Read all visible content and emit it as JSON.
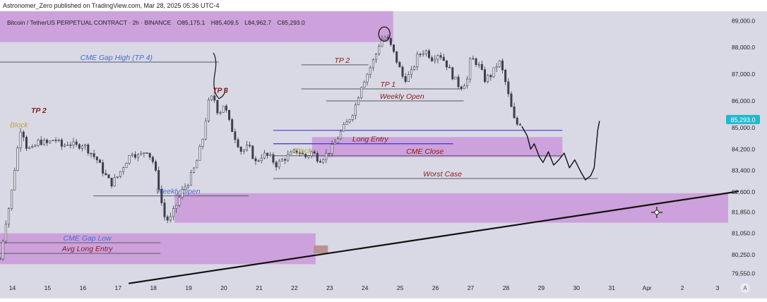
{
  "header": {
    "published": "Astronomer_Zero published on TradingView.com, Mar 28, 2025 05:36 UTC-4",
    "symbol": "Bitcoin / TetherUS PERPETUAL CONTRACT · 2h · BINANCE",
    "open": "O85,175.1",
    "high": "H85,409.5",
    "low": "L84,962.7",
    "close": "C85,293.0"
  },
  "chart_data": {
    "type": "candlestick",
    "title": "Bitcoin / TetherUS PERPETUAL CONTRACT · 2h · BINANCE",
    "y_axis": {
      "ylim": [
        79250,
        89350
      ],
      "ticks": [
        "89,000.0",
        "88,000.0",
        "87,000.0",
        "86,000.0",
        "85,000.0",
        "84,200.0",
        "83,400.0",
        "82,600.0",
        "81,850.0",
        "81,050.0",
        "80,250.0",
        "79,550.0"
      ],
      "tick_values": [
        89000,
        88000,
        87000,
        86000,
        85000,
        84200,
        83400,
        82600,
        81850,
        81050,
        80250,
        79550
      ],
      "last_price": "85,293.0",
      "last_value": 85293
    },
    "x_axis": {
      "labels": [
        "14",
        "15",
        "16",
        "17",
        "18",
        "19",
        "20",
        "21",
        "22",
        "23",
        "24",
        "25",
        "26",
        "27",
        "28",
        "29",
        "30",
        "31",
        "Apr",
        "2",
        "3"
      ],
      "day_start": 13.65,
      "day_end": 34.2
    },
    "price_path": [
      [
        13.65,
        80100
      ],
      [
        13.8,
        81400
      ],
      [
        13.95,
        82300
      ],
      [
        14.1,
        83800
      ],
      [
        14.25,
        85100
      ],
      [
        14.4,
        84300
      ],
      [
        14.55,
        84150
      ],
      [
        14.75,
        84500
      ],
      [
        15.0,
        84400
      ],
      [
        15.2,
        84600
      ],
      [
        15.4,
        84300
      ],
      [
        15.6,
        84450
      ],
      [
        15.8,
        84300
      ],
      [
        16.0,
        84400
      ],
      [
        16.2,
        84100
      ],
      [
        16.4,
        83800
      ],
      [
        16.6,
        83300
      ],
      [
        16.8,
        82900
      ],
      [
        17.0,
        83200
      ],
      [
        17.2,
        83700
      ],
      [
        17.4,
        84100
      ],
      [
        17.6,
        83900
      ],
      [
        17.8,
        84200
      ],
      [
        18.0,
        83700
      ],
      [
        18.15,
        82800
      ],
      [
        18.3,
        81700
      ],
      [
        18.45,
        81500
      ],
      [
        18.6,
        81950
      ],
      [
        18.8,
        82600
      ],
      [
        19.0,
        83000
      ],
      [
        19.2,
        83600
      ],
      [
        19.4,
        84600
      ],
      [
        19.55,
        85900
      ],
      [
        19.7,
        86200
      ],
      [
        19.85,
        85500
      ],
      [
        20.0,
        85900
      ],
      [
        20.15,
        85200
      ],
      [
        20.3,
        84700
      ],
      [
        20.5,
        84100
      ],
      [
        20.7,
        84300
      ],
      [
        20.9,
        83700
      ],
      [
        21.1,
        84000
      ],
      [
        21.3,
        83900
      ],
      [
        21.5,
        83600
      ],
      [
        21.7,
        83850
      ],
      [
        21.9,
        84000
      ],
      [
        22.1,
        84150
      ],
      [
        22.3,
        83900
      ],
      [
        22.5,
        84100
      ],
      [
        22.7,
        83800
      ],
      [
        22.9,
        84000
      ],
      [
        23.1,
        84300
      ],
      [
        23.3,
        84800
      ],
      [
        23.5,
        85200
      ],
      [
        23.7,
        85700
      ],
      [
        23.9,
        86600
      ],
      [
        24.1,
        87100
      ],
      [
        24.3,
        87700
      ],
      [
        24.45,
        88300
      ],
      [
        24.6,
        88400
      ],
      [
        24.75,
        88000
      ],
      [
        24.9,
        87500
      ],
      [
        25.1,
        86800
      ],
      [
        25.3,
        87000
      ],
      [
        25.5,
        87700
      ],
      [
        25.7,
        87900
      ],
      [
        25.9,
        87600
      ],
      [
        26.1,
        87800
      ],
      [
        26.3,
        87400
      ],
      [
        26.5,
        86900
      ],
      [
        26.7,
        86500
      ],
      [
        26.9,
        86800
      ],
      [
        27.0,
        87600
      ],
      [
        27.2,
        87400
      ],
      [
        27.4,
        86800
      ],
      [
        27.6,
        87000
      ],
      [
        27.8,
        87500
      ],
      [
        27.95,
        86900
      ],
      [
        28.1,
        86000
      ],
      [
        28.25,
        85200
      ],
      [
        28.35,
        85100
      ],
      [
        28.45,
        85300
      ]
    ],
    "forecast_path": [
      [
        28.45,
        85050
      ],
      [
        28.6,
        84700
      ],
      [
        28.7,
        84200
      ],
      [
        28.8,
        84400
      ],
      [
        28.95,
        83900
      ],
      [
        29.05,
        83700
      ],
      [
        29.2,
        84100
      ],
      [
        29.35,
        83600
      ],
      [
        29.5,
        83800
      ],
      [
        29.65,
        84050
      ],
      [
        29.8,
        83500
      ],
      [
        29.95,
        83800
      ],
      [
        30.1,
        83400
      ],
      [
        30.25,
        83050
      ],
      [
        30.4,
        83200
      ],
      [
        30.5,
        83500
      ],
      [
        30.55,
        84200
      ],
      [
        30.6,
        84900
      ],
      [
        30.65,
        85250
      ]
    ],
    "trendline": [
      [
        17.3,
        79180
      ],
      [
        34.6,
        82620
      ]
    ],
    "horizontal_levels": [
      {
        "label": "CME Gap High (TP 4)",
        "value": 87450,
        "x0": 13.65,
        "x1": 19.85,
        "label_color": "#4a6bd0"
      },
      {
        "label": "TP 2",
        "value": 87350,
        "x0": 22.2,
        "x1": 24.1,
        "label_color": "#8a1a1a"
      },
      {
        "label": "TP 1",
        "value": 86450,
        "x0": 22.2,
        "x1": 26.7,
        "label_color": "#8a1a1a"
      },
      {
        "label": "Weekly Open",
        "value": 86000,
        "x0": 22.9,
        "x1": 26.8,
        "label_color": "#8a1a1a"
      },
      {
        "label": "Long Entry",
        "value": 84400,
        "x0": 21.4,
        "x1": 26.5,
        "label_color": "#8a1a1a"
      },
      {
        "label": "CME Close",
        "value": 83950,
        "x0": 21.4,
        "x1": 29.6,
        "label_color": "#8a1a1a"
      },
      {
        "label": "Worst Case",
        "value": 83100,
        "x0": 21.4,
        "x1": 30.6,
        "label_color": "#8a1a1a"
      },
      {
        "label": "Weekly Open",
        "value": 82450,
        "x0": 16.3,
        "x1": 20.7,
        "label_color": "#4a6bd0"
      },
      {
        "label": "CME Gap Low",
        "value": 80700,
        "x0": 13.65,
        "x1": 18.2,
        "label_color": "#4a6bd0"
      },
      {
        "label": "Avg Long Entry",
        "value": 80300,
        "x0": 13.65,
        "x1": 18.2,
        "label_color": "#8a1a1a"
      }
    ],
    "zones": [
      {
        "label": "",
        "x0": 13.65,
        "x1": 24.8,
        "y0": 88200,
        "y1": 89350
      },
      {
        "label": "",
        "x0": 13.65,
        "x1": 22.6,
        "y0": 79900,
        "y1": 81050
      },
      {
        "label": "",
        "x0": 18.6,
        "x1": 34.3,
        "y0": 81450,
        "y1": 82550
      },
      {
        "label": "",
        "x0": 22.5,
        "x1": 29.6,
        "y0": 83900,
        "y1": 84650
      }
    ],
    "annotations": [
      {
        "text": "TP 2",
        "x": 14.25,
        "y": 85450,
        "color": "#8a1a1a"
      },
      {
        "text": "TP 3",
        "x": 19.4,
        "y": 86200,
        "color": "#8a1a1a"
      },
      {
        "text": "Block",
        "x": 13.65,
        "y": 84900,
        "color": "#c4a03a"
      },
      {
        "text": "Block",
        "x": 21.7,
        "y": 83950,
        "color": "#c4a03a"
      }
    ]
  }
}
